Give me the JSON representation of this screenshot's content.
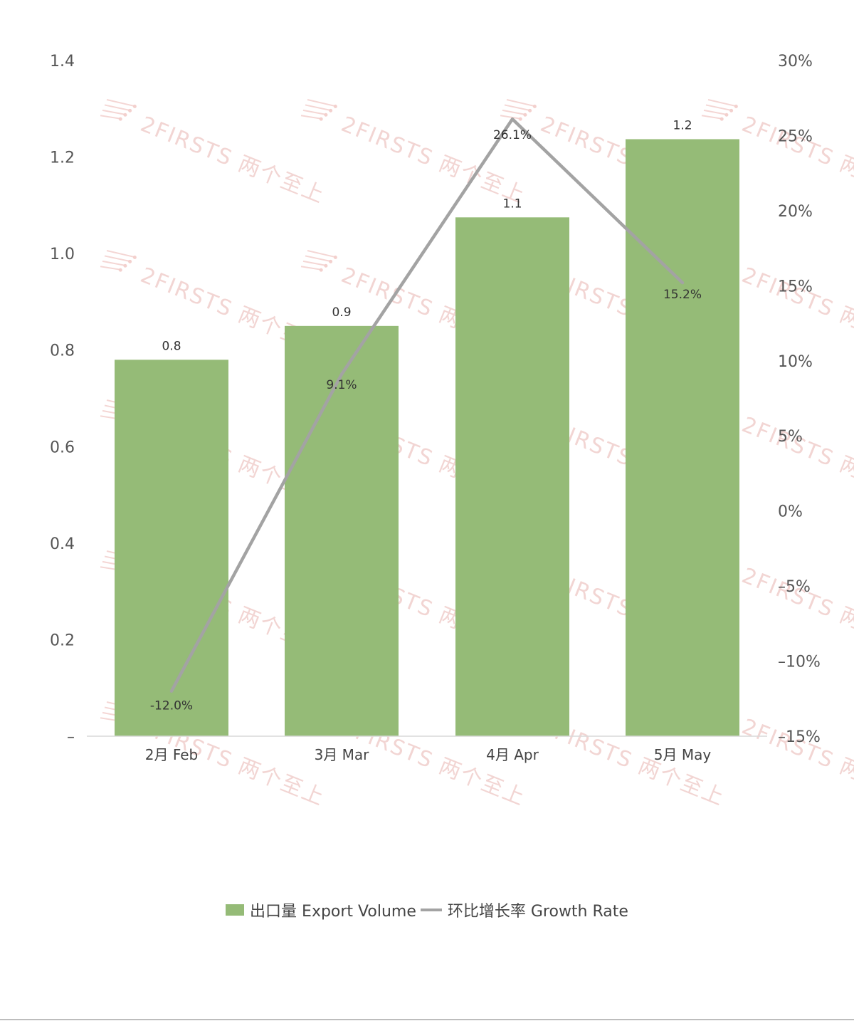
{
  "chart_data": {
    "type": "bar",
    "categories": [
      "2月 Feb",
      "3月 Mar",
      "4月 Apr",
      "5月 May"
    ],
    "series": [
      {
        "name": "出口量 Export Volume",
        "type": "bar",
        "axis": "left",
        "values": [
          0.78,
          0.85,
          1.075,
          1.237
        ],
        "labels": [
          "0.8",
          "0.9",
          "1.1",
          "1.2"
        ],
        "color": "#95bb77"
      },
      {
        "name": "环比增长率 Growth Rate",
        "type": "line",
        "axis": "right",
        "values": [
          -12.0,
          9.1,
          26.1,
          15.2
        ],
        "labels": [
          "-12.0%",
          "9.1%",
          "26.1%",
          "15.2%"
        ],
        "color": "#a3a3a3"
      }
    ],
    "y_left": {
      "ylim": [
        0,
        1.4
      ],
      "ticks": [
        0,
        0.2,
        0.4,
        0.6,
        0.8,
        1.0,
        1.2,
        1.4
      ],
      "tick_labels": [
        "–",
        "0.2",
        "0.4",
        "0.6",
        "0.8",
        "1.0",
        "1.2",
        "1.4"
      ]
    },
    "y_right": {
      "ylim": [
        -15,
        30
      ],
      "ticks": [
        -15,
        -10,
        -5,
        0,
        5,
        10,
        15,
        20,
        25,
        30
      ],
      "tick_labels": [
        "–15%",
        "–10%",
        "–5%",
        "0%",
        "5%",
        "10%",
        "15%",
        "20%",
        "25%",
        "30%"
      ]
    },
    "title": "",
    "xlabel": "",
    "ylabel": "",
    "grid": false,
    "legend_position": "bottom-center"
  },
  "watermark": {
    "text": "2FIRSTS 两个至上"
  },
  "legend": {
    "items": [
      {
        "label": "出口量 Export Volume",
        "color": "#95bb77"
      },
      {
        "label": "环比增长率 Growth Rate",
        "color": "#a3a3a3"
      }
    ]
  }
}
